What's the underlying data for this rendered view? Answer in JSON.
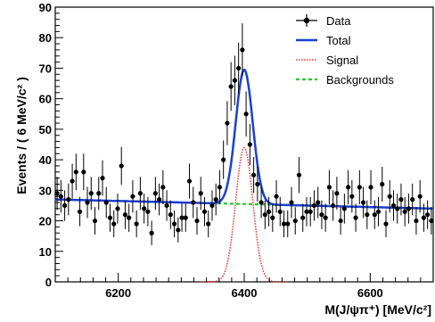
{
  "chart_data": {
    "type": "scatter",
    "xlabel": "M(J/ψπ⁺) [MeV/c²]",
    "ylabel": "Events / ( 6 MeV/c² )",
    "xlim": [
      6100,
      6700
    ],
    "ylim": [
      0,
      90
    ],
    "x_ticks": [
      6200,
      6400,
      6600
    ],
    "y_ticks": [
      0,
      10,
      20,
      30,
      40,
      50,
      60,
      70,
      80,
      90
    ],
    "x_tick_labels": [
      "6200",
      "6400",
      "6600"
    ],
    "y_tick_labels": [
      "0",
      "10",
      "20",
      "30",
      "40",
      "50",
      "60",
      "70",
      "80",
      "90"
    ],
    "legend": {
      "position": "top-right",
      "entries": [
        "Data",
        "Total",
        "Signal",
        "Backgrounds"
      ]
    },
    "colors": {
      "data": "#000000",
      "total": "#1a3fd6",
      "signal": "#e0302a",
      "background": "#22cc22"
    },
    "series": [
      {
        "name": "Data",
        "x": [
          6103,
          6109,
          6115,
          6121,
          6127,
          6133,
          6139,
          6145,
          6151,
          6157,
          6163,
          6169,
          6175,
          6181,
          6187,
          6193,
          6199,
          6205,
          6211,
          6217,
          6223,
          6229,
          6235,
          6241,
          6247,
          6253,
          6259,
          6265,
          6271,
          6277,
          6283,
          6289,
          6295,
          6301,
          6307,
          6313,
          6319,
          6325,
          6331,
          6337,
          6343,
          6349,
          6355,
          6361,
          6367,
          6373,
          6379,
          6385,
          6391,
          6397,
          6403,
          6409,
          6415,
          6421,
          6427,
          6433,
          6439,
          6445,
          6451,
          6457,
          6463,
          6469,
          6475,
          6481,
          6487,
          6493,
          6499,
          6505,
          6511,
          6517,
          6523,
          6529,
          6535,
          6541,
          6547,
          6553,
          6559,
          6565,
          6571,
          6577,
          6583,
          6589,
          6595,
          6601,
          6607,
          6613,
          6619,
          6625,
          6631,
          6637,
          6643,
          6649,
          6655,
          6661,
          6667,
          6673,
          6679,
          6685,
          6691,
          6697
        ],
        "y": [
          29,
          28,
          25,
          27,
          33,
          36,
          23,
          36,
          26,
          29,
          20,
          29,
          34,
          26,
          21,
          19,
          24,
          38,
          22,
          21,
          28,
          19,
          29,
          24,
          23,
          16,
          29,
          27,
          31,
          25,
          22,
          19,
          17,
          21,
          21,
          33,
          26,
          20,
          29,
          23,
          19,
          25,
          27,
          31,
          40,
          52,
          64,
          66,
          70,
          76,
          55,
          45,
          35,
          32,
          26,
          22,
          23,
          21,
          28,
          23,
          19,
          19,
          26,
          20,
          35,
          21,
          23,
          23,
          25,
          26,
          22,
          21,
          31,
          25,
          29,
          20,
          24,
          31,
          28,
          21,
          31,
          26,
          22,
          31,
          22,
          23,
          32,
          19,
          28,
          25,
          24,
          27,
          23,
          24,
          27,
          20,
          28,
          21,
          22,
          20
        ],
        "err": [
          5.4,
          5.3,
          5.0,
          5.2,
          5.7,
          6.0,
          4.8,
          6.0,
          5.1,
          5.4,
          4.5,
          5.4,
          5.8,
          5.1,
          4.6,
          4.4,
          4.9,
          6.2,
          4.7,
          4.6,
          5.3,
          4.4,
          5.4,
          4.9,
          4.8,
          4.0,
          5.4,
          5.2,
          5.6,
          5.0,
          4.7,
          4.4,
          4.1,
          4.6,
          4.6,
          5.7,
          5.1,
          4.5,
          5.4,
          4.8,
          4.4,
          5.0,
          5.2,
          5.6,
          6.3,
          7.2,
          8.0,
          8.1,
          8.4,
          8.7,
          7.4,
          6.7,
          5.9,
          5.7,
          5.1,
          4.7,
          4.8,
          4.6,
          5.3,
          4.8,
          4.4,
          4.4,
          5.1,
          4.5,
          5.9,
          4.6,
          4.8,
          4.8,
          5.0,
          5.1,
          4.7,
          4.6,
          5.6,
          5.0,
          5.4,
          4.5,
          4.9,
          5.6,
          5.3,
          4.6,
          5.6,
          5.1,
          4.7,
          5.6,
          4.7,
          4.8,
          5.7,
          4.4,
          5.3,
          5.0,
          4.9,
          5.2,
          4.8,
          4.9,
          5.2,
          4.5,
          5.3,
          4.6,
          4.7,
          4.5
        ]
      },
      {
        "name": "Total",
        "model": "gaussian_plus_linear",
        "mean": 6400,
        "sigma": 13.5,
        "amplitude": 44
      },
      {
        "name": "Signal",
        "model": "gaussian",
        "mean": 6400,
        "sigma": 13.5,
        "amplitude": 44
      },
      {
        "name": "Backgrounds",
        "model": "linear",
        "points": [
          [
            6100,
            27.0
          ],
          [
            6700,
            24.0
          ]
        ]
      }
    ],
    "grid": false
  }
}
